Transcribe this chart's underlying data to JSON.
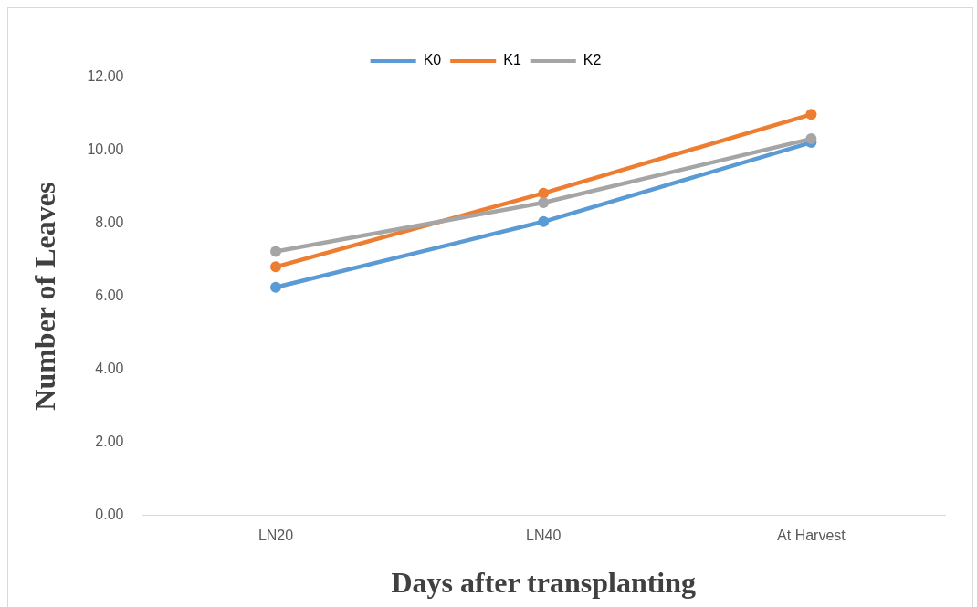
{
  "chart_data": {
    "type": "line",
    "xlabel": "Days after transplanting",
    "ylabel": "Number of Leaves",
    "categories": [
      "LN20",
      "LN40",
      "At Harvest"
    ],
    "series": [
      {
        "name": "K0",
        "color": "#5b9bd5",
        "values": [
          6.25,
          8.05,
          10.22
        ]
      },
      {
        "name": "K1",
        "color": "#ed7d31",
        "values": [
          6.81,
          8.83,
          10.99
        ]
      },
      {
        "name": "K2",
        "color": "#a5a5a5",
        "values": [
          7.23,
          8.57,
          10.32
        ]
      }
    ],
    "ylim": [
      0,
      12
    ],
    "yticks": [
      {
        "value": 0,
        "label": "0.00"
      },
      {
        "value": 2,
        "label": "2.00"
      },
      {
        "value": 4,
        "label": "4.00"
      },
      {
        "value": 6,
        "label": "6.00"
      },
      {
        "value": 8,
        "label": "8.00"
      },
      {
        "value": 10,
        "label": "10.00"
      },
      {
        "value": 12,
        "label": "12.00"
      }
    ],
    "legend": "top",
    "marker": "circle",
    "line_style": "solid",
    "grid": false
  }
}
